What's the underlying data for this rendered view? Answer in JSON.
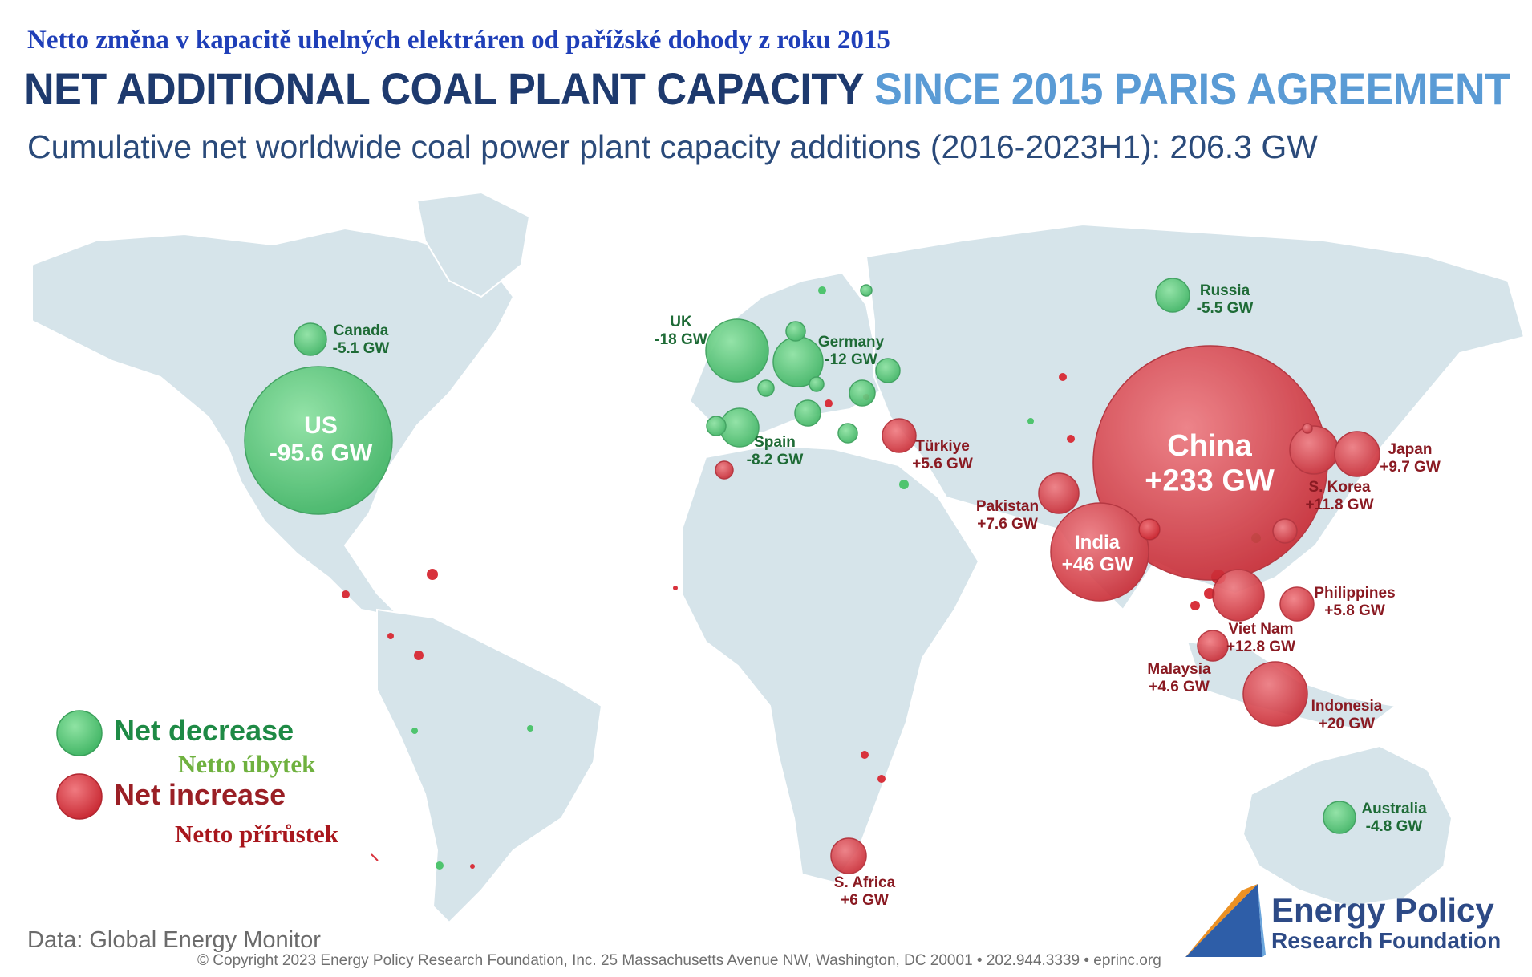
{
  "titles": {
    "czech_title": "Netto změna v kapacitě uhelných elektráren od pařížské dohody z roku 2015",
    "main_title_dark": "NET ADDITIONAL COAL PLANT CAPACITY",
    "main_title_light": "SINCE 2015 PARIS AGREEMENT",
    "subtitle": "Cumulative net worldwide coal power plant capacity additions (2016-2023H1): 206.3 GW"
  },
  "legend": {
    "decrease_en": "Net decrease",
    "decrease_cz": "Netto úbytek",
    "increase_en": "Net increase",
    "increase_cz": "Netto přírůstek"
  },
  "colors": {
    "decrease": "#4fc46e",
    "increase": "#d8323c",
    "decrease_text": "#1e6b36",
    "increase_text": "#8a1a22",
    "land": "#d6e4ea",
    "border": "#ffffff"
  },
  "countries": [
    {
      "name": "US",
      "value": "-95.6 GW",
      "type": "decrease"
    },
    {
      "name": "Canada",
      "value": "-5.1 GW",
      "type": "decrease"
    },
    {
      "name": "UK",
      "value": "-18 GW",
      "type": "decrease"
    },
    {
      "name": "Germany",
      "value": "-12 GW",
      "type": "decrease"
    },
    {
      "name": "Spain",
      "value": "-8.2 GW",
      "type": "decrease"
    },
    {
      "name": "Russia",
      "value": "-5.5 GW",
      "type": "decrease"
    },
    {
      "name": "Australia",
      "value": "-4.8 GW",
      "type": "decrease"
    },
    {
      "name": "Türkiye",
      "value": "+5.6 GW",
      "type": "increase"
    },
    {
      "name": "Pakistan",
      "value": "+7.6 GW",
      "type": "increase"
    },
    {
      "name": "India",
      "value": "+46 GW",
      "type": "increase"
    },
    {
      "name": "China",
      "value": "+233 GW",
      "type": "increase"
    },
    {
      "name": "Japan",
      "value": "+9.7 GW",
      "type": "increase"
    },
    {
      "name": "S. Korea",
      "value": "+11.8 GW",
      "type": "increase"
    },
    {
      "name": "Philippines",
      "value": "+5.8 GW",
      "type": "increase"
    },
    {
      "name": "Viet Nam",
      "value": "+12.8 GW",
      "type": "increase"
    },
    {
      "name": "Malaysia",
      "value": "+4.6 GW",
      "type": "increase"
    },
    {
      "name": "Indonesia",
      "value": "+20 GW",
      "type": "increase"
    },
    {
      "name": "S. Africa",
      "value": "+6 GW",
      "type": "increase"
    }
  ],
  "footer": {
    "data_source": "Data: Global Energy Monitor",
    "copyright": "© Copyright 2023 Energy Policy Research Foundation, Inc. 25 Massachusetts Avenue NW, Washington, DC 20001 • 202.944.3339 • eprinc.org"
  },
  "logo": {
    "line1": "Energy Policy",
    "line2": "Research Foundation"
  }
}
